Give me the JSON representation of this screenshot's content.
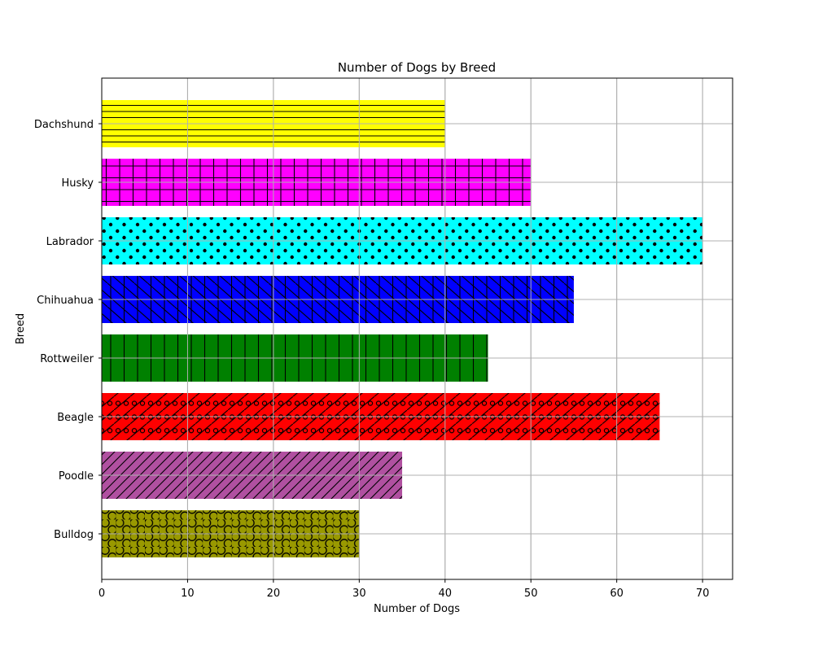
{
  "chart_data": {
    "type": "bar",
    "orientation": "horizontal",
    "title": "Number of Dogs by Breed",
    "xlabel": "Number of Dogs",
    "ylabel": "Breed",
    "categories": [
      "Bulldog",
      "Poodle",
      "Beagle",
      "Rottweiler",
      "Chihuahua",
      "Labrador",
      "Husky",
      "Dachshund"
    ],
    "values": [
      30,
      35,
      65,
      45,
      55,
      70,
      50,
      40
    ],
    "colors": [
      "#999900",
      "#b050a0",
      "#ff0000",
      "#008000",
      "#0000ff",
      "#00ffff",
      "#ff00ff",
      "#ffff00"
    ],
    "hatches": [
      "circles",
      "diagonal",
      "diagonal-dots",
      "vertical",
      "back-diagonal-vertical",
      "dots",
      "grid",
      "horizontal"
    ],
    "xlim": [
      0,
      73.5
    ],
    "xticks": [
      0,
      10,
      20,
      30,
      40,
      50,
      60,
      70
    ],
    "grid": true
  }
}
